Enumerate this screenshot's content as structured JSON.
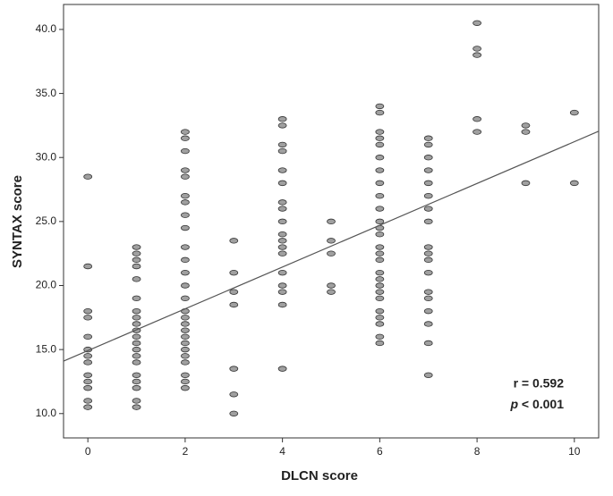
{
  "chart_data": {
    "type": "scatter",
    "x_label": "DLCN score",
    "y_label": "SYNTAX score",
    "annotations": {
      "r": "r = 0.592",
      "p_symbol": "p",
      "p_value": "< 0.001"
    },
    "x": [
      0,
      0,
      0,
      0,
      0,
      0,
      0,
      0,
      0,
      0,
      0,
      0,
      0,
      1,
      1,
      1,
      1,
      1,
      1,
      1,
      1,
      1,
      1,
      1,
      1,
      1,
      1,
      1,
      1,
      1,
      1,
      1,
      1,
      2,
      2,
      2,
      2,
      2,
      2,
      2,
      2,
      2,
      2,
      2,
      2,
      2,
      2,
      2,
      2,
      2,
      2,
      2,
      2,
      2,
      2,
      2,
      2,
      2,
      2,
      3,
      3,
      3,
      3,
      3,
      3,
      3,
      4,
      4,
      4,
      4,
      4,
      4,
      4,
      4,
      4,
      4,
      4,
      4,
      4,
      4,
      4,
      4,
      4,
      4,
      5,
      5,
      5,
      5,
      5,
      6,
      6,
      6,
      6,
      6,
      6,
      6,
      6,
      6,
      6,
      6,
      6,
      6,
      6,
      6,
      6,
      6,
      6,
      6,
      6,
      6,
      6,
      6,
      6,
      6,
      6,
      7,
      7,
      7,
      7,
      7,
      7,
      7,
      7,
      7,
      7,
      7,
      7,
      7,
      7,
      7,
      7,
      7,
      7,
      8,
      8,
      8,
      8,
      8,
      9,
      9,
      9,
      10,
      10
    ],
    "values": [
      28.5,
      21.5,
      18,
      17.5,
      16,
      15,
      14.5,
      14,
      13,
      12.5,
      12,
      11,
      10.5,
      23,
      22.5,
      22,
      21.5,
      20.5,
      19,
      18,
      17.5,
      17,
      16.5,
      16,
      15.5,
      15,
      14.5,
      14,
      13,
      12.5,
      12,
      11,
      10.5,
      32,
      31.5,
      30.5,
      29,
      28.5,
      27,
      26.5,
      25.5,
      24.5,
      23,
      22,
      21,
      20,
      19,
      18,
      17.5,
      17,
      16.5,
      16,
      15.5,
      15,
      14.5,
      14,
      13,
      12.5,
      12,
      23.5,
      21,
      19.5,
      18.5,
      13.5,
      11.5,
      10,
      33,
      32.5,
      31,
      30.5,
      29,
      28,
      26.5,
      26,
      25,
      24,
      23.5,
      23,
      22.5,
      21,
      20,
      19.5,
      18.5,
      13.5,
      25,
      23.5,
      22.5,
      20,
      19.5,
      34,
      33.5,
      32,
      31.5,
      31,
      30,
      29,
      28,
      27,
      26,
      25,
      24.5,
      24,
      23,
      22.5,
      22,
      21,
      20.5,
      20,
      19.5,
      19,
      18,
      17.5,
      17,
      16,
      15.5,
      31.5,
      31,
      30,
      29,
      28,
      27,
      26,
      25,
      23,
      22.5,
      22,
      21,
      19.5,
      19,
      18,
      17,
      15.5,
      13,
      40.5,
      38.5,
      38,
      33,
      32,
      32.5,
      32,
      28,
      33.5,
      28
    ],
    "color": "#a0a0a0",
    "regression_line": {
      "x": [
        -0.5,
        10.5
      ],
      "y": [
        14.1,
        32.05
      ]
    },
    "xlim": [
      -0.5,
      10.5
    ],
    "ylim": [
      8.1,
      41.95
    ],
    "xticks": [
      0,
      2,
      4,
      6,
      8,
      10
    ],
    "yticks": [
      {
        "value": 10,
        "label": "10.0"
      },
      {
        "value": 15,
        "label": "15.0"
      },
      {
        "value": 20,
        "label": "20.0"
      },
      {
        "value": 25,
        "label": "25.0"
      },
      {
        "value": 30,
        "label": "30.0"
      },
      {
        "value": 35,
        "label": "35.0"
      },
      {
        "value": 40,
        "label": "40.0"
      }
    ]
  }
}
